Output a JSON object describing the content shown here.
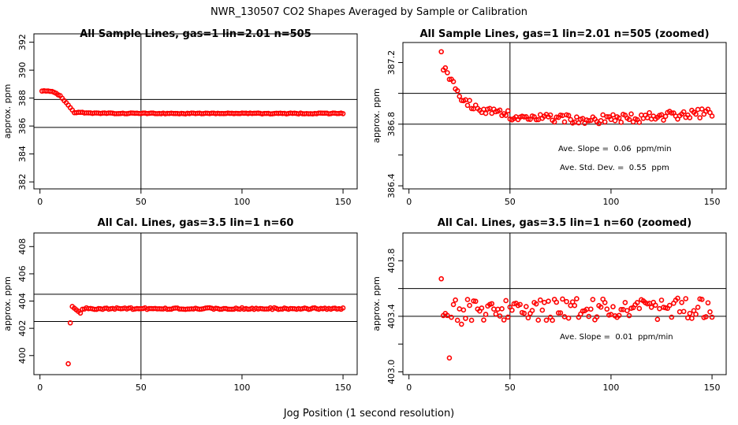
{
  "figure": {
    "suptitle": "NWR_130507  CO2 Shapes Averaged by Sample or Calibration",
    "xlabel": "Jog Position (1 second resolution)"
  },
  "colors": {
    "points": "#ff0000",
    "axes": "#000000"
  },
  "chart_data": [
    {
      "id": "p1",
      "type": "scatter",
      "title": "All Sample Lines, gas=1 lin=2.01 n=505",
      "ylabel": "approx. ppm",
      "xlim": [
        -3,
        157
      ],
      "ylim": [
        381.5,
        392.6
      ],
      "xticks": [
        0,
        50,
        100,
        150
      ],
      "xtick_labels": [
        "0",
        "50",
        "100",
        "150"
      ],
      "yticks": [
        382,
        384,
        386,
        388,
        390,
        392
      ],
      "ytick_labels": [
        "382",
        "384",
        "386",
        "388",
        "390",
        "392"
      ],
      "vline": 50,
      "hlines": [
        385.9,
        387.9
      ],
      "annotations": [],
      "series": {
        "x_start": 1,
        "x_end": 150,
        "y_start": 388.5,
        "y_end": 386.9,
        "trend": "decay"
      }
    },
    {
      "id": "p2",
      "type": "scatter",
      "title": "All Sample Lines, gas=1 lin=2.01 n=505 (zoomed)",
      "ylabel": "approx. ppm",
      "xlim": [
        -3,
        157
      ],
      "ylim": [
        386.38,
        387.33
      ],
      "xticks": [
        0,
        50,
        100,
        150
      ],
      "xtick_labels": [
        "0",
        "50",
        "100",
        "150"
      ],
      "yticks": [
        386.4,
        386.6,
        386.8,
        387.0,
        387.2
      ],
      "ytick_labels": [
        "386.4",
        "",
        "386.8",
        "",
        "387.2"
      ],
      "vline": 50,
      "hlines": [
        386.8,
        387.0
      ],
      "annotations": [
        "Ave. Slope =  0.06  ppm/min",
        "Ave. Std. Dev. =  0.55  ppm"
      ],
      "series": {
        "x_start": 16,
        "x_end": 150,
        "y_start": 387.27,
        "y_end": 386.92,
        "trend": "zoom-decay"
      }
    },
    {
      "id": "p3",
      "type": "scatter",
      "title": "All Cal. Lines, gas=3.5 lin=1 n=60",
      "ylabel": "approx. ppm",
      "xlim": [
        -3,
        157
      ],
      "ylim": [
        398.6,
        409.0
      ],
      "xticks": [
        0,
        50,
        100,
        150
      ],
      "xtick_labels": [
        "0",
        "50",
        "100",
        "150"
      ],
      "yticks": [
        400,
        402,
        404,
        406,
        408
      ],
      "ytick_labels": [
        "400",
        "402",
        "404",
        "406",
        "408"
      ],
      "vline": 50,
      "hlines": [
        402.5,
        404.5
      ],
      "annotations": [],
      "series": {
        "x_start": 14,
        "x_end": 150,
        "y_start": 399.4,
        "y_end": 403.4,
        "trend": "cal"
      }
    },
    {
      "id": "p4",
      "type": "scatter",
      "title": "All Cal. Lines, gas=3.5 lin=1 n=60 (zoomed)",
      "ylabel": "approx. ppm",
      "xlim": [
        -3,
        157
      ],
      "ylim": [
        402.98,
        404.0
      ],
      "xticks": [
        0,
        50,
        100,
        150
      ],
      "xtick_labels": [
        "0",
        "50",
        "100",
        "150"
      ],
      "yticks": [
        403.0,
        403.2,
        403.4,
        403.6,
        403.8
      ],
      "ytick_labels": [
        "403.0",
        "",
        "403.4",
        "",
        "403.8"
      ],
      "vline": 50,
      "hlines": [
        403.4,
        403.6
      ],
      "annotations": [
        "Ave. Slope =  0.01  ppm/min"
      ],
      "series": {
        "x_start": 16,
        "x_end": 150,
        "y_start": 403.52,
        "y_end": 403.42,
        "trend": "cal-zoom"
      }
    }
  ]
}
